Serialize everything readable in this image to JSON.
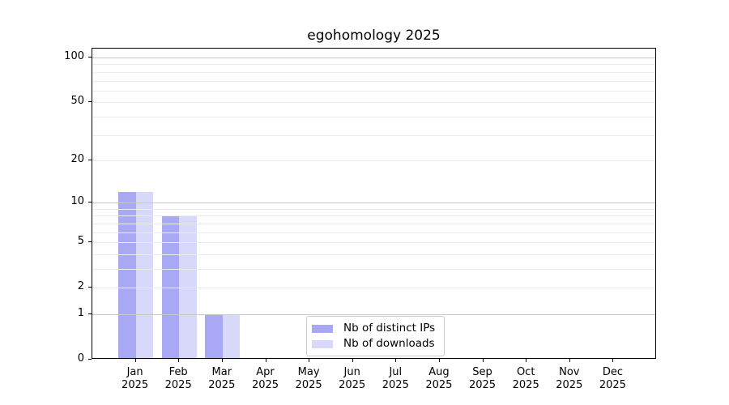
{
  "title": "egohomology 2025",
  "chart_data": {
    "type": "bar",
    "title": "egohomology 2025",
    "x_tick_months": [
      "Jan",
      "Feb",
      "Mar",
      "Apr",
      "May",
      "Jun",
      "Jul",
      "Aug",
      "Sep",
      "Oct",
      "Nov",
      "Dec"
    ],
    "x_tick_year": "2025",
    "series": [
      {
        "name": "Nb of distinct IPs",
        "color": "#a8a8f5",
        "values": [
          12,
          8,
          1,
          0,
          0,
          0,
          0,
          0,
          0,
          0,
          0,
          0
        ]
      },
      {
        "name": "Nb of downloads",
        "color": "#d8d8fa",
        "values": [
          12,
          8,
          1,
          0,
          0,
          0,
          0,
          0,
          0,
          0,
          0,
          0
        ]
      }
    ],
    "y_axis": {
      "scale": "log10(1+v)",
      "ticks": [
        0,
        1,
        2,
        5,
        10,
        20,
        50,
        100
      ],
      "strong_gridlines": [
        1,
        10,
        100
      ],
      "light_gridlines": [
        2,
        3,
        4,
        5,
        6,
        7,
        8,
        9,
        20,
        30,
        40,
        50,
        60,
        70,
        80,
        90
      ],
      "range": [
        0,
        114
      ]
    },
    "legend": {
      "position": "lower-center",
      "entries": [
        "Nb of distinct IPs",
        "Nb of downloads"
      ]
    },
    "grid": true,
    "grid_above_bars": true
  },
  "colors": {
    "bar_distinct_ips": "#a8a8f5",
    "bar_downloads": "#d8d8fa",
    "grid_major": "#c8c8c8",
    "grid_light": "#ececec",
    "axis": "#000000",
    "legend_border": "#cccccc",
    "text": "#000000",
    "background": "#ffffff"
  }
}
